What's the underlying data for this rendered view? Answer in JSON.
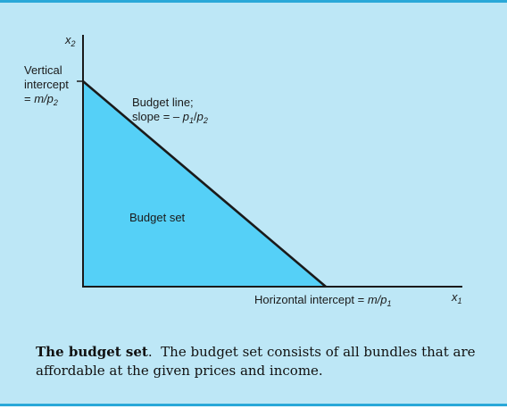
{
  "colors": {
    "background": "#bde7f6",
    "frame_rule": "#2aa8d8",
    "budget_set_fill": "#55d0f7",
    "line": "#1a1a1a"
  },
  "diagram": {
    "y_axis_label": "x",
    "y_axis_subscript": "2",
    "x_axis_label": "x",
    "x_axis_subscript": "1",
    "vertical_intercept": {
      "line1": "Vertical",
      "line2": "intercept",
      "line3_prefix": "= ",
      "line3_var": "m/p",
      "line3_sub": "2"
    },
    "budget_line": {
      "line1": "Budget line;",
      "line2_prefix": "slope = – ",
      "p1": "p",
      "p1_sub": "1",
      "sep": "/",
      "p2": "p",
      "p2_sub": "2"
    },
    "budget_set_label": "Budget set",
    "horizontal_intercept": {
      "prefix": "Horizontal intercept = ",
      "var": "m/p",
      "sub": "1"
    }
  },
  "caption": {
    "title": "The budget set",
    "title_period": ".",
    "text": "The budget set consists of all bundles that are affordable at the given prices and income."
  }
}
